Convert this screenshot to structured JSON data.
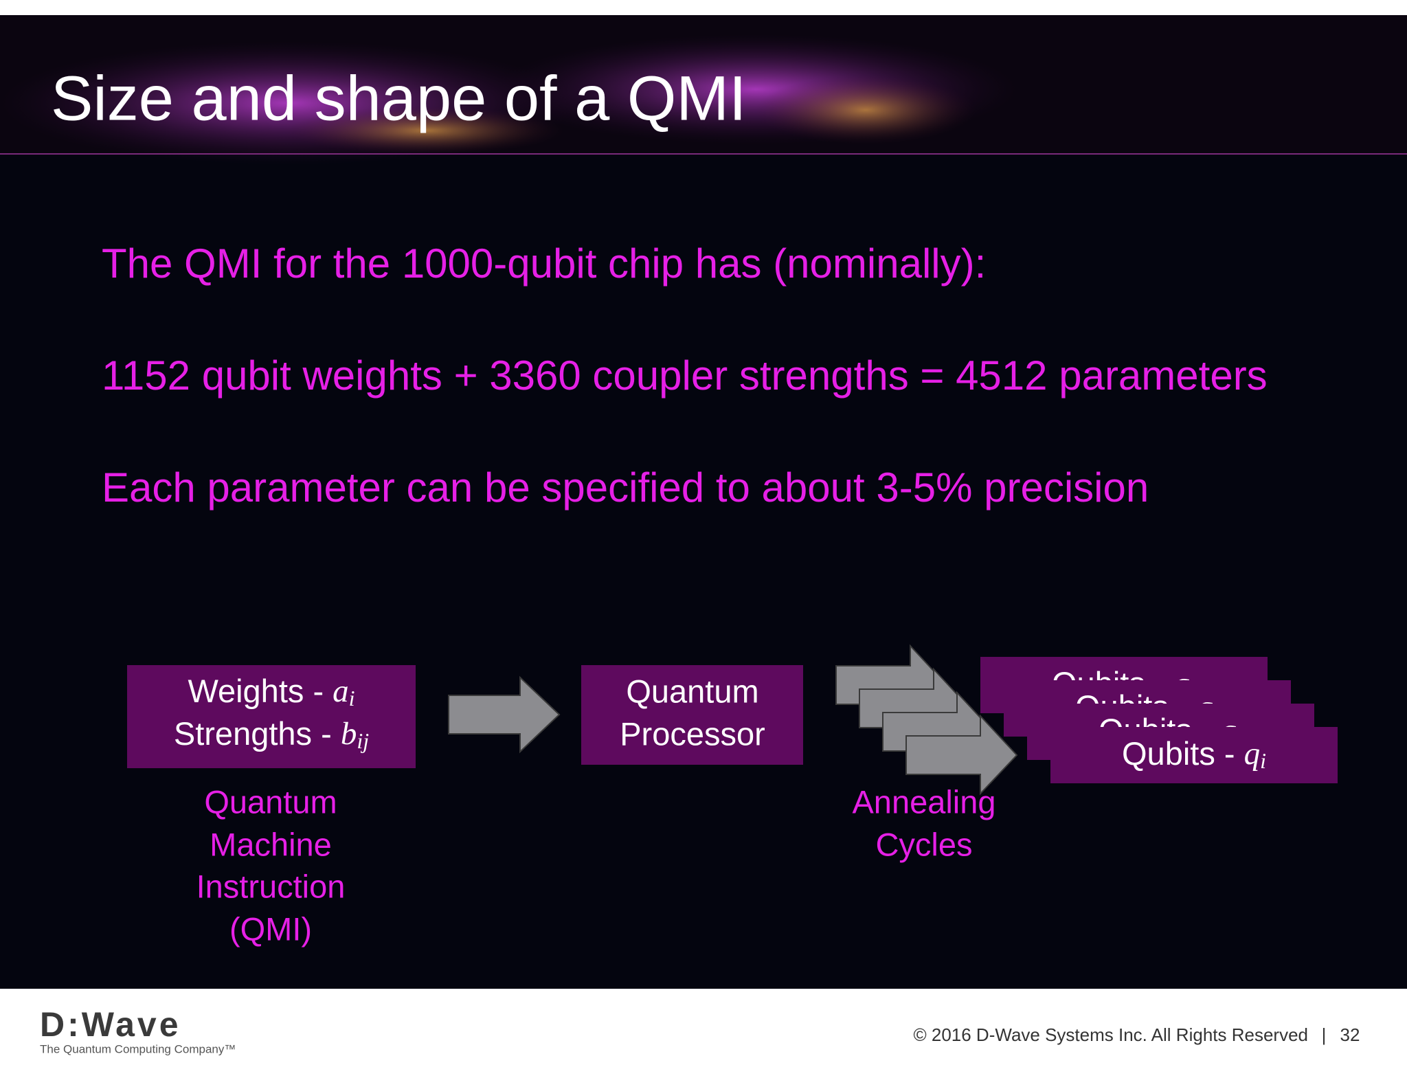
{
  "header": {
    "title": "Size and shape of a QMI"
  },
  "body": {
    "lines": [
      "The QMI for the 1000-qubit chip has (nominally):",
      "1152 qubit weights + 3360 coupler strengths = 4512 parameters",
      "Each parameter can be specified to about 3-5% precision"
    ]
  },
  "diagram": {
    "input_box": {
      "line1": {
        "text": "Weights - ",
        "var": "a",
        "sub": "i"
      },
      "line2": {
        "text": "Strengths - ",
        "var": "b",
        "sub": "ij"
      }
    },
    "input_caption": [
      "Quantum",
      "Machine",
      "Instruction",
      "(QMI)"
    ],
    "processor_box": [
      "Quantum",
      "Processor"
    ],
    "arrows_caption": [
      "Annealing",
      "Cycles"
    ],
    "output_box": {
      "text": "Qubits - ",
      "var": "q",
      "sub": "i"
    }
  },
  "footer": {
    "logo": "D:Wave",
    "tagline": "The Quantum Computing Company™",
    "copyright": "© 2016 D-Wave Systems Inc. All Rights Reserved",
    "separator": "|",
    "page": "32"
  }
}
